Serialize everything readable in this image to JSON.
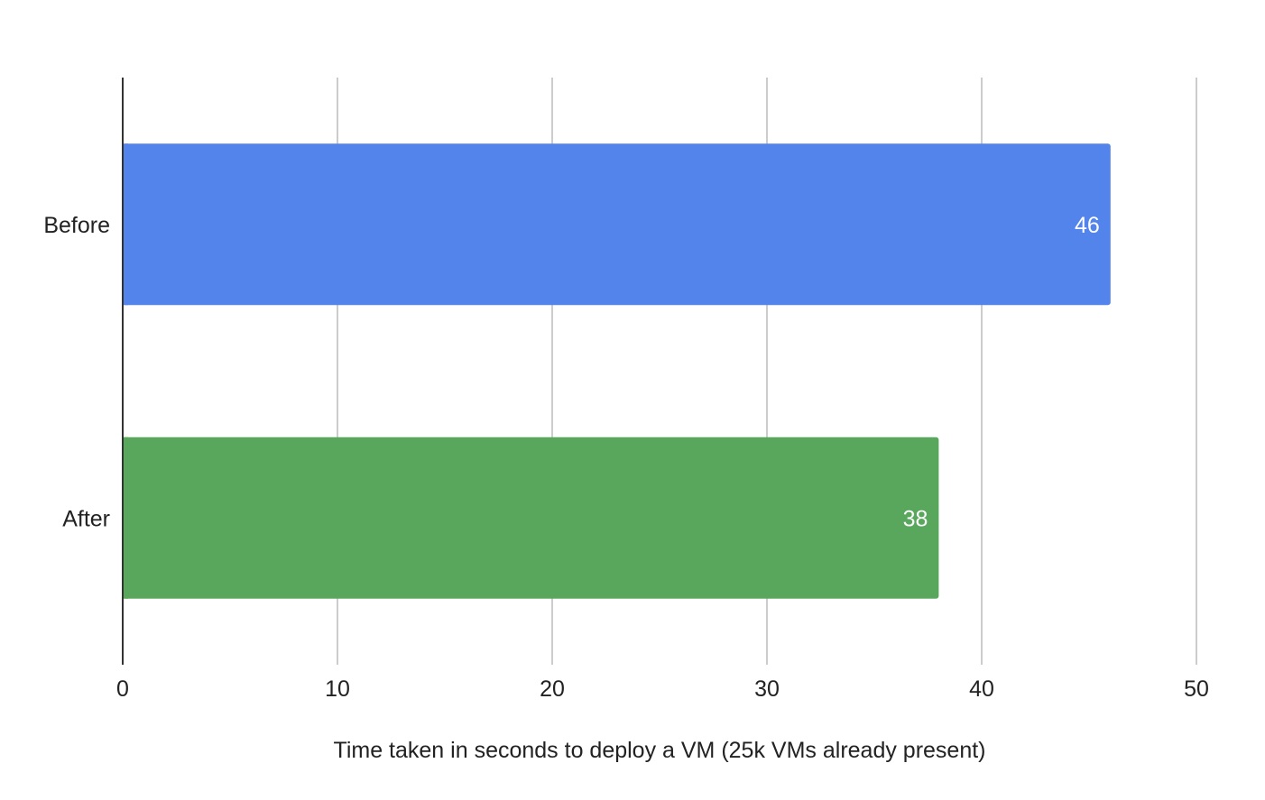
{
  "chart_data": {
    "type": "bar",
    "orientation": "horizontal",
    "title": "",
    "categories": [
      "Before",
      "After"
    ],
    "values": [
      46,
      38
    ],
    "data_labels": [
      "46",
      "38"
    ],
    "colors": [
      "#5384EC",
      "#58A75C"
    ],
    "xlabel": "Time taken in seconds to deploy a VM (25k VMs already present)",
    "ylabel": "",
    "xlim": [
      0,
      50
    ],
    "xticks": [
      0,
      10,
      20,
      30,
      40,
      50
    ],
    "xtick_labels": [
      "0",
      "10",
      "20",
      "30",
      "40",
      "50"
    ],
    "grid": true,
    "legend": "none"
  }
}
